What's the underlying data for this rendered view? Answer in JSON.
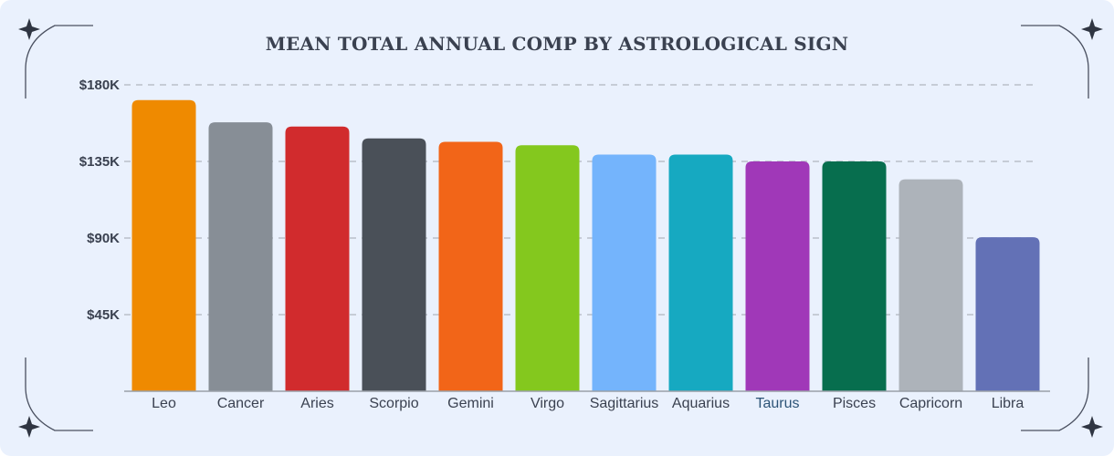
{
  "chart_data": {
    "type": "bar",
    "title": "MEAN TOTAL ANNUAL COMP BY ASTROLOGICAL SIGN",
    "categories": [
      "Leo",
      "Cancer",
      "Aries",
      "Scorpio",
      "Gemini",
      "Virgo",
      "Sagittarius",
      "Aquarius",
      "Taurus",
      "Pisces",
      "Capricorn",
      "Libra"
    ],
    "values": [
      171000,
      158000,
      155500,
      148500,
      146500,
      144500,
      139000,
      139000,
      135000,
      135000,
      124500,
      90500
    ],
    "colors": [
      "#ef8a00",
      "#878e96",
      "#d12b2d",
      "#4a5058",
      "#f26518",
      "#84c81e",
      "#74b4fc",
      "#16a9c1",
      "#a038b8",
      "#076e4e",
      "#adb3ba",
      "#6371b6"
    ],
    "highlighted_category": "Taurus",
    "highlight_label_color": "#2d5477",
    "ylim": [
      0,
      180000
    ],
    "yticks": [
      45000,
      90000,
      135000,
      180000
    ],
    "ytick_labels": [
      "$45K",
      "$90K",
      "$135K",
      "$180K"
    ],
    "xlabel": "",
    "ylabel": "",
    "grid": true,
    "legend": "none"
  }
}
